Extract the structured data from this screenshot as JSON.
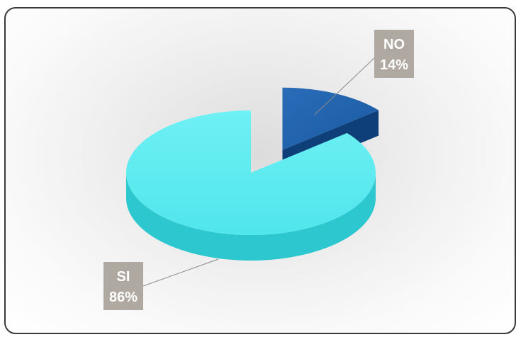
{
  "chart_data": {
    "type": "pie",
    "title": "",
    "categories": [
      "SI",
      "NO"
    ],
    "values": [
      86,
      14
    ],
    "unit": "%",
    "data_labels": [
      {
        "category": "SI",
        "value": "86%"
      },
      {
        "category": "NO",
        "value": "14%"
      }
    ],
    "colors": {
      "SI": {
        "top": "#4fe6ec",
        "side": "#2cc7cf"
      },
      "NO": {
        "top": "#1a5aa3",
        "side": "#0f3f78"
      }
    },
    "label_box_color": "#b0a9a2",
    "style": "3d-exploded",
    "legend": "none"
  }
}
